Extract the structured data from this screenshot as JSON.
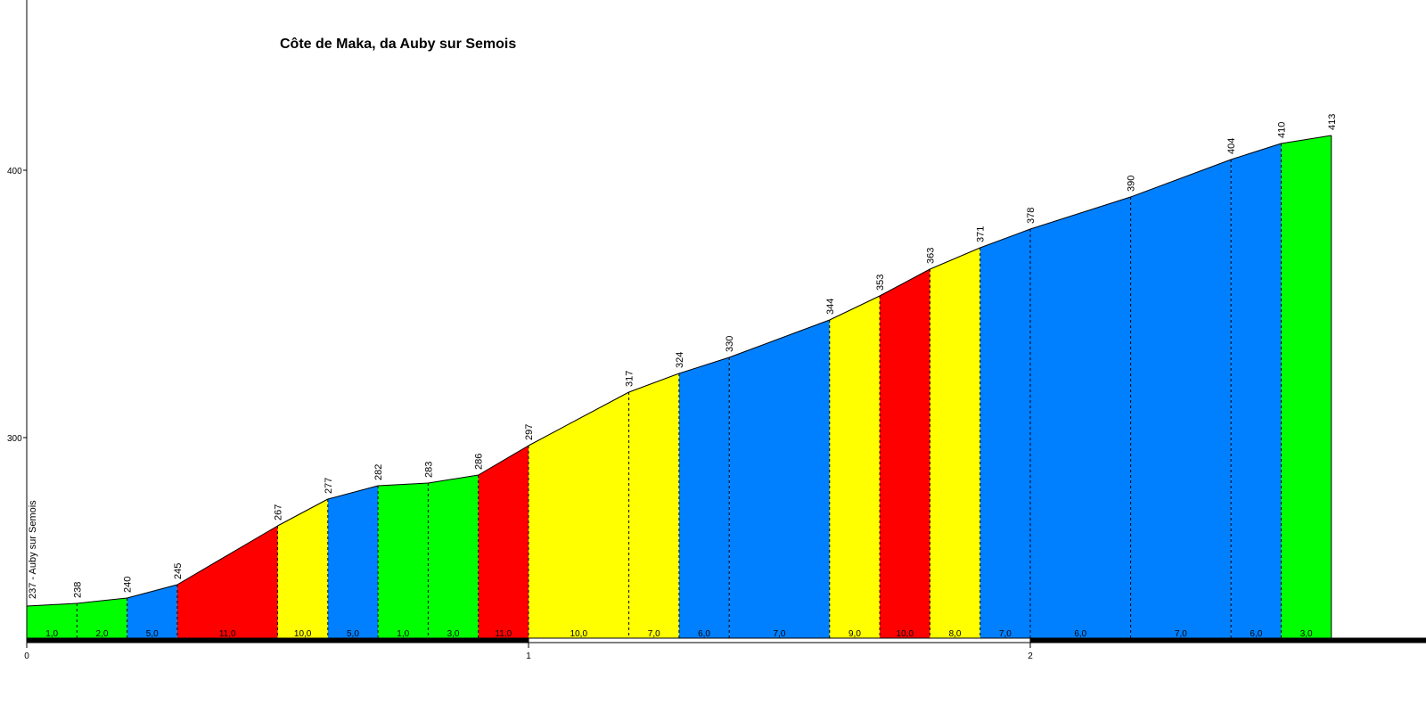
{
  "chart_data": {
    "type": "area",
    "title": "Côte de Maka, da Auby sur Semois",
    "xlabel": "",
    "ylabel": "",
    "xlim": [
      0,
      2.8
    ],
    "ylim": [
      225,
      465
    ],
    "x_ticks": [
      {
        "value": 0,
        "label": "0"
      },
      {
        "value": 1,
        "label": "1"
      },
      {
        "value": 2,
        "label": "2"
      }
    ],
    "y_ticks": [
      {
        "value": 300,
        "label": "300"
      },
      {
        "value": 400,
        "label": "400"
      }
    ],
    "start_label": "237 - Auby sur Semois",
    "colors": {
      "green": "#00ff00",
      "blue": "#0080ff",
      "red": "#ff0000",
      "yellow": "#ffff00"
    },
    "points": [
      {
        "x": 0.0,
        "elev": 237,
        "label": ""
      },
      {
        "x": 0.1,
        "elev": 238,
        "label": "238"
      },
      {
        "x": 0.2,
        "elev": 240,
        "label": "240"
      },
      {
        "x": 0.3,
        "elev": 245,
        "label": "245"
      },
      {
        "x": 0.5,
        "elev": 267,
        "label": "267"
      },
      {
        "x": 0.6,
        "elev": 277,
        "label": "277"
      },
      {
        "x": 0.7,
        "elev": 282,
        "label": "282"
      },
      {
        "x": 0.8,
        "elev": 283,
        "label": "283"
      },
      {
        "x": 0.9,
        "elev": 286,
        "label": "286"
      },
      {
        "x": 1.0,
        "elev": 297,
        "label": "297"
      },
      {
        "x": 1.2,
        "elev": 317,
        "label": "317"
      },
      {
        "x": 1.3,
        "elev": 324,
        "label": "324"
      },
      {
        "x": 1.4,
        "elev": 330,
        "label": "330"
      },
      {
        "x": 1.6,
        "elev": 344,
        "label": "344"
      },
      {
        "x": 1.7,
        "elev": 353,
        "label": "353"
      },
      {
        "x": 1.8,
        "elev": 363,
        "label": "363"
      },
      {
        "x": 1.9,
        "elev": 371,
        "label": "371"
      },
      {
        "x": 2.0,
        "elev": 378,
        "label": "378"
      },
      {
        "x": 2.2,
        "elev": 390,
        "label": "390"
      },
      {
        "x": 2.4,
        "elev": 404,
        "label": "404"
      },
      {
        "x": 2.5,
        "elev": 410,
        "label": "410"
      },
      {
        "x": 2.6,
        "elev": 413,
        "label": "413"
      }
    ],
    "segments": [
      {
        "grade": "1,0",
        "color": "#00ff00"
      },
      {
        "grade": "2,0",
        "color": "#00ff00"
      },
      {
        "grade": "5,0",
        "color": "#0080ff"
      },
      {
        "grade": "11,0",
        "color": "#ff0000"
      },
      {
        "grade": "10,0",
        "color": "#ffff00"
      },
      {
        "grade": "5,0",
        "color": "#0080ff"
      },
      {
        "grade": "1,0",
        "color": "#00ff00"
      },
      {
        "grade": "3,0",
        "color": "#00ff00"
      },
      {
        "grade": "11,0",
        "color": "#ff0000"
      },
      {
        "grade": "10,0",
        "color": "#ffff00"
      },
      {
        "grade": "7,0",
        "color": "#ffff00"
      },
      {
        "grade": "6,0",
        "color": "#0080ff"
      },
      {
        "grade": "7,0",
        "color": "#0080ff"
      },
      {
        "grade": "9,0",
        "color": "#ffff00"
      },
      {
        "grade": "10,0",
        "color": "#ff0000"
      },
      {
        "grade": "8,0",
        "color": "#ffff00"
      },
      {
        "grade": "7,0",
        "color": "#0080ff"
      },
      {
        "grade": "6,0",
        "color": "#0080ff"
      },
      {
        "grade": "7,0",
        "color": "#0080ff"
      },
      {
        "grade": "6,0",
        "color": "#0080ff"
      },
      {
        "grade": "3,0",
        "color": "#00ff00"
      }
    ],
    "km_bar": [
      {
        "from": 0,
        "to": 1,
        "color": "#000000"
      },
      {
        "from": 1,
        "to": 2,
        "color": "#ffffff"
      },
      {
        "from": 2,
        "to": 2.8,
        "color": "#000000"
      }
    ]
  }
}
